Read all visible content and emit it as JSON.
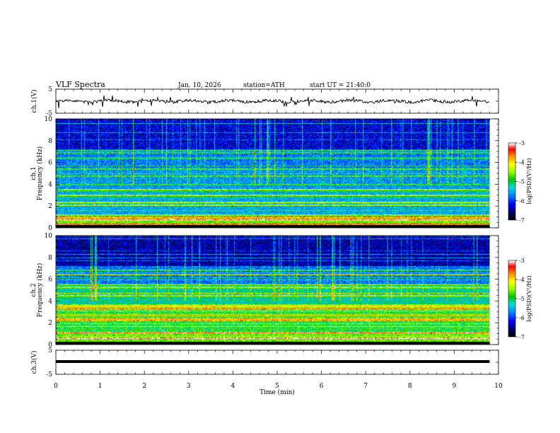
{
  "header": {
    "title": "VLF Spectra",
    "date": "Jan. 10, 2026",
    "station": "station=ATH",
    "start": "start UT =  21:40:0"
  },
  "chart_data": {
    "type": "heatmap",
    "title": "VLF Spectra",
    "xlabel": "Time (min)",
    "xlim": [
      0,
      10
    ],
    "xticks": [
      "0",
      "1",
      "2",
      "3",
      "4",
      "5",
      "6",
      "7",
      "8",
      "9",
      "10"
    ],
    "data_end_min": 9.8,
    "panels": [
      {
        "id": "ch1-waveform",
        "type": "line",
        "ylabel": "ch.1(V)",
        "ylim": [
          -5,
          5
        ],
        "yticks": [
          "5",
          "-5"
        ]
      },
      {
        "id": "ch1-spectrogram",
        "type": "heatmap",
        "ylabel_top": "ch.1",
        "ylabel": "Frequency (kHz)",
        "ylim": [
          0,
          10
        ],
        "yticks": [
          "0",
          "2",
          "4",
          "6",
          "8",
          "10"
        ],
        "colorbar": {
          "label": "log(PSD)(V²/Hz)",
          "range": [
            -7,
            -3
          ],
          "ticks": [
            "-3",
            "-4",
            "-5",
            "-6",
            "-7"
          ]
        }
      },
      {
        "id": "ch2-spectrogram",
        "type": "heatmap",
        "ylabel_top": "ch.2",
        "ylabel": "Frequency (kHz)",
        "ylim": [
          0,
          10
        ],
        "yticks": [
          "0",
          "2",
          "4",
          "6",
          "8",
          "10"
        ],
        "colorbar": {
          "label": "log(PSD)(V²/Hz)",
          "range": [
            -7,
            -3
          ],
          "ticks": [
            "-3",
            "-4",
            "-5",
            "-6",
            "-7"
          ]
        }
      },
      {
        "id": "ch3-waveform",
        "type": "line",
        "ylabel": "ch.3(V)",
        "ylim": [
          -5,
          5
        ],
        "yticks": [
          "5",
          "-5"
        ]
      }
    ]
  },
  "colors": {
    "colormap": [
      "#000000",
      "#00008b",
      "#0000ff",
      "#0096ff",
      "#00dcdc",
      "#00c800",
      "#96ff00",
      "#ffff00",
      "#ff9600",
      "#ff0000",
      "#ffffff"
    ]
  }
}
